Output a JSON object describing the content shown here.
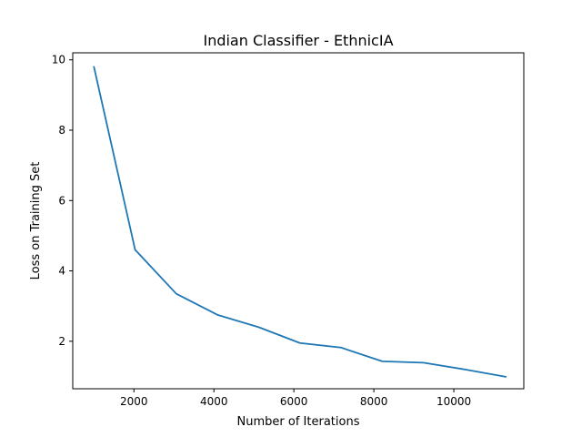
{
  "chart_data": {
    "type": "line",
    "title": "Indian Classifier - EthnicIA",
    "xlabel": "Number of Iterations",
    "ylabel": "Loss on Training Set",
    "xlim": [
      470,
      11750
    ],
    "ylim": [
      0.65,
      10.2
    ],
    "xticks": [
      2000,
      4000,
      6000,
      8000,
      10000
    ],
    "yticks": [
      2,
      4,
      6,
      8,
      10
    ],
    "grid": false,
    "series": [
      {
        "color": "#1f77b4",
        "x": [
          1000,
          2030,
          3060,
          4090,
          5120,
          6150,
          7180,
          8210,
          9240,
          10270,
          11300
        ],
        "y": [
          9.8,
          4.6,
          3.35,
          2.75,
          2.4,
          1.95,
          1.82,
          1.43,
          1.39,
          1.2,
          0.99
        ]
      }
    ]
  }
}
